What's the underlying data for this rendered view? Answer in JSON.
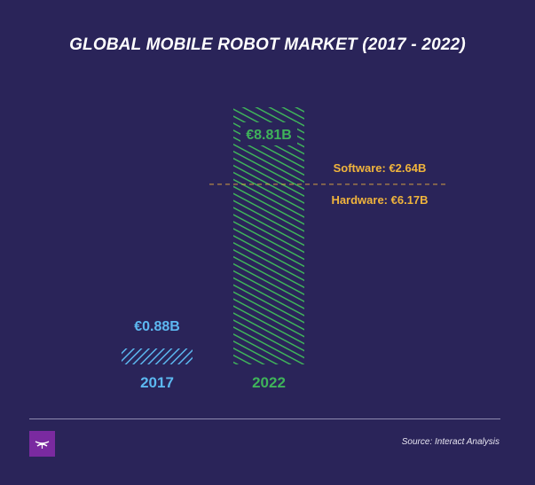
{
  "title": "GLOBAL MOBILE ROBOT MARKET (2017 - 2022)",
  "source": "Source: Interact Analysis",
  "colors": {
    "background": "#2a2459",
    "bar_2017": "#5cb8f0",
    "bar_2022": "#3fb35a",
    "annotation": "#f0b43c",
    "text": "#ffffff"
  },
  "logo": {
    "icon": "interact-analysis-logo-icon"
  },
  "chart_data": {
    "type": "bar",
    "title": "GLOBAL MOBILE ROBOT MARKET (2017 - 2022)",
    "categories": [
      "2017",
      "2022"
    ],
    "values": [
      0.88,
      8.81
    ],
    "value_labels": [
      "€0.88B",
      "€8.81B"
    ],
    "unit": "€B",
    "ylim": [
      0,
      8.81
    ],
    "grid": false,
    "legend": "none",
    "fill_pattern": "diagonal-hatch",
    "segments_2022": [
      {
        "label": "Hardware: €6.17B",
        "value": 6.17
      },
      {
        "label": "Software: €2.64B",
        "value": 2.64
      }
    ]
  }
}
